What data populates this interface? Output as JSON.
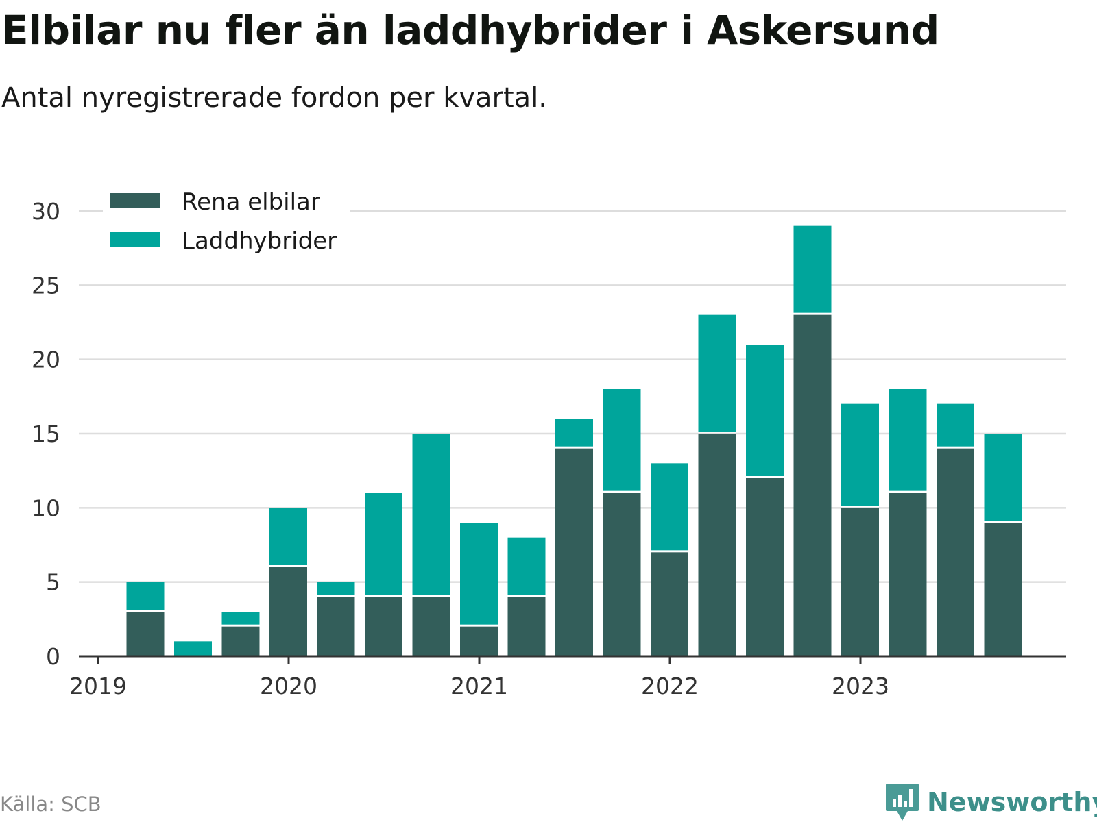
{
  "header": {
    "title": "Elbilar nu fler än laddhybrider i Askersund",
    "subtitle": "Antal nyregistrerade fordon per kvartal."
  },
  "footer": {
    "source": "Källa: SCB",
    "brand": "Newsworthy"
  },
  "colors": {
    "elbilar": "#335e5a",
    "laddhybrider": "#00a59b",
    "grid": "#dddddd",
    "axis": "#333333"
  },
  "chart_data": {
    "type": "bar",
    "stacked": true,
    "title": "Elbilar nu fler än laddhybrider i Askersund",
    "subtitle": "Antal nyregistrerade fordon per kvartal.",
    "xlabel": "",
    "ylabel": "",
    "ylim": [
      0,
      30
    ],
    "yticks": [
      0,
      5,
      10,
      15,
      20,
      25,
      30
    ],
    "grid": true,
    "legend_position": "top-left",
    "x_year_labels": [
      "2019",
      "2020",
      "2021",
      "2022",
      "2023"
    ],
    "categories": [
      "2019 Q2",
      "2019 Q3",
      "2019 Q4",
      "2020 Q1",
      "2020 Q2",
      "2020 Q3",
      "2020 Q4",
      "2021 Q1",
      "2021 Q2",
      "2021 Q3",
      "2021 Q4",
      "2022 Q1",
      "2022 Q2",
      "2022 Q3",
      "2022 Q4",
      "2023 Q1",
      "2023 Q2",
      "2023 Q3",
      "2023 Q4"
    ],
    "series": [
      {
        "name": "Rena elbilar",
        "values": [
          3,
          0,
          2,
          6,
          4,
          4,
          4,
          2,
          4,
          14,
          11,
          7,
          15,
          12,
          23,
          10,
          11,
          14,
          9
        ]
      },
      {
        "name": "Laddhybrider",
        "values": [
          2,
          1,
          1,
          4,
          1,
          7,
          11,
          7,
          4,
          2,
          7,
          6,
          8,
          9,
          6,
          7,
          7,
          3,
          6
        ]
      }
    ]
  }
}
